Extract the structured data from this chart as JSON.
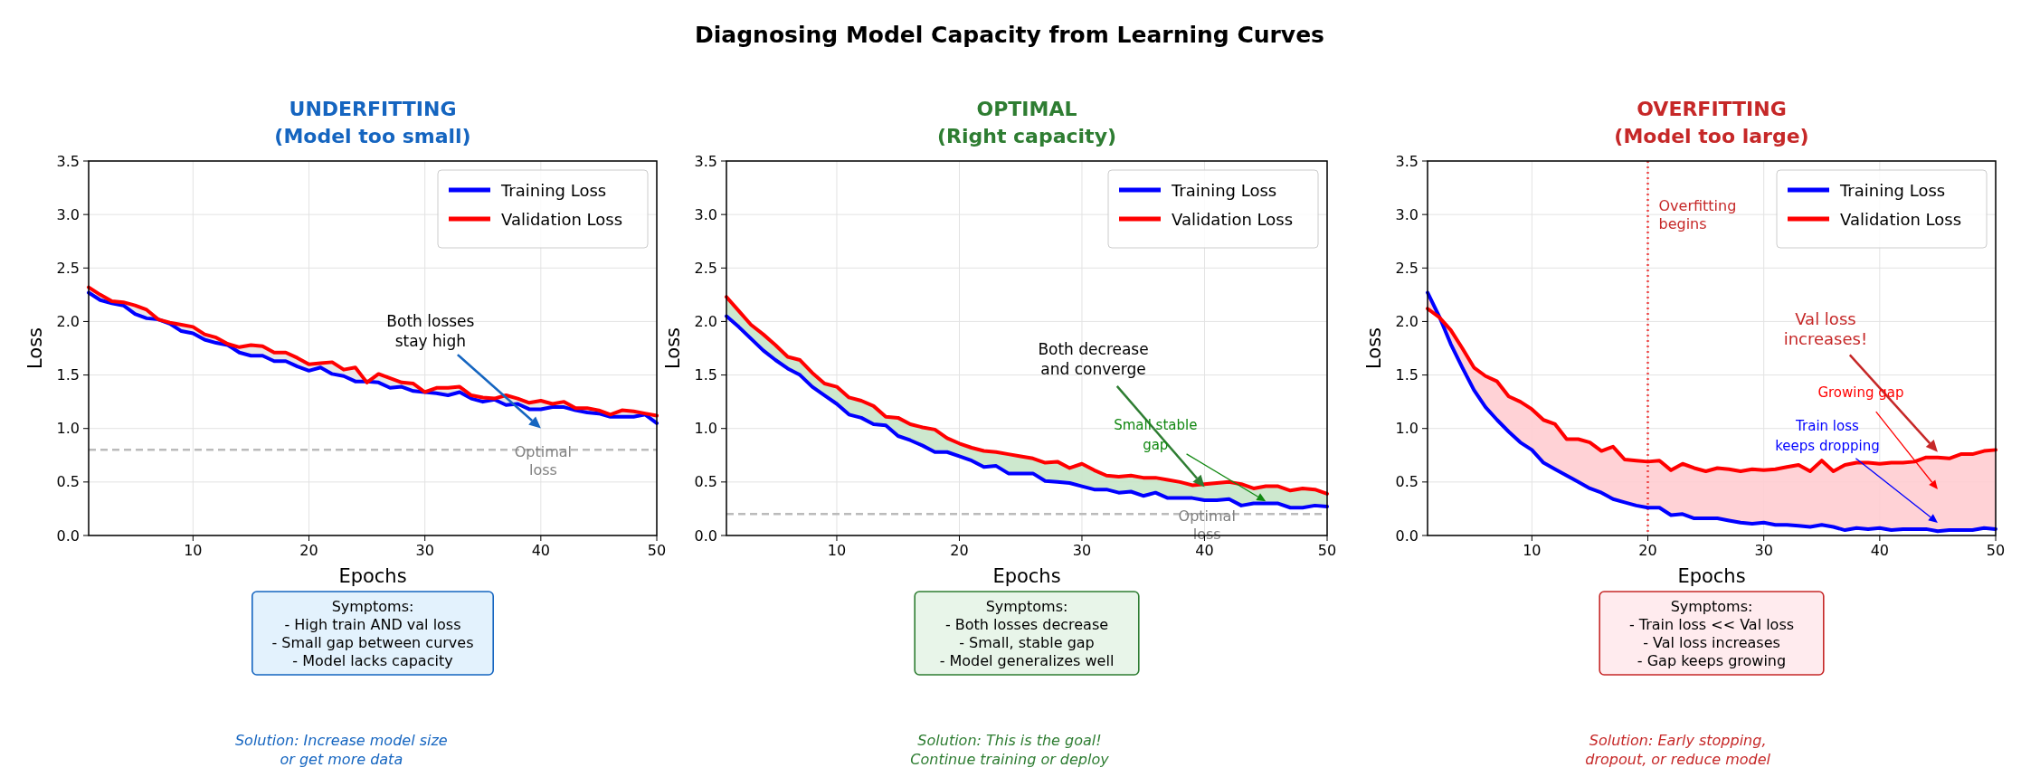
{
  "chart_data": [
    {
      "type": "line",
      "title": "UNDERFITTING\n(Model too small)",
      "xlabel": "Epochs",
      "ylabel": "Loss",
      "xlim": [
        1,
        50
      ],
      "ylim": [
        0,
        3.5
      ],
      "xticks": [
        10,
        20,
        30,
        40,
        50
      ],
      "yticks": [
        {
          "value": 0,
          "label": "0.0"
        },
        0.5,
        {
          "value": 1,
          "label": "1.0"
        },
        1.5,
        {
          "value": 2,
          "label": "2.0"
        },
        2.5,
        {
          "value": 3,
          "label": "3.0"
        },
        3.5
      ],
      "grid": true,
      "legend": "top right",
      "x": [
        1,
        2,
        3,
        4,
        5,
        6,
        7,
        8,
        9,
        10,
        11,
        12,
        13,
        14,
        15,
        16,
        17,
        18,
        19,
        20,
        21,
        22,
        23,
        24,
        25,
        26,
        27,
        28,
        29,
        30,
        31,
        32,
        33,
        34,
        35,
        36,
        37,
        38,
        39,
        40,
        41,
        42,
        43,
        44,
        45,
        46,
        47,
        48,
        49,
        50
      ],
      "series": [
        {
          "name": "Training Loss",
          "color": "#0000ff",
          "values": [
            2.27,
            2.2,
            2.17,
            2.15,
            2.07,
            2.03,
            2.02,
            1.98,
            1.91,
            1.89,
            1.83,
            1.8,
            1.78,
            1.71,
            1.68,
            1.68,
            1.63,
            1.63,
            1.58,
            1.54,
            1.57,
            1.51,
            1.49,
            1.44,
            1.44,
            1.43,
            1.38,
            1.39,
            1.35,
            1.34,
            1.33,
            1.31,
            1.34,
            1.28,
            1.25,
            1.27,
            1.22,
            1.23,
            1.18,
            1.18,
            1.2,
            1.2,
            1.17,
            1.15,
            1.14,
            1.11,
            1.11,
            1.11,
            1.13,
            1.05
          ]
        },
        {
          "name": "Validation Loss",
          "color": "#ff0000",
          "values": [
            2.32,
            2.25,
            2.19,
            2.18,
            2.15,
            2.11,
            2.02,
            1.99,
            1.97,
            1.95,
            1.88,
            1.85,
            1.79,
            1.76,
            1.78,
            1.77,
            1.71,
            1.71,
            1.66,
            1.6,
            1.61,
            1.62,
            1.55,
            1.57,
            1.43,
            1.51,
            1.47,
            1.43,
            1.42,
            1.34,
            1.38,
            1.38,
            1.39,
            1.31,
            1.29,
            1.28,
            1.31,
            1.28,
            1.24,
            1.26,
            1.23,
            1.25,
            1.19,
            1.19,
            1.17,
            1.13,
            1.17,
            1.16,
            1.14,
            1.12
          ],
          "lower": [
            2.27,
            2.2,
            2.17,
            2.15,
            2.07,
            2.03,
            2.02,
            1.98,
            1.91,
            1.89,
            1.83,
            1.8,
            1.78,
            1.71,
            1.68,
            1.68,
            1.63,
            1.63,
            1.58,
            1.54,
            1.57,
            1.51,
            1.49,
            1.44,
            1.44,
            1.43,
            1.38,
            1.39,
            1.35,
            1.34,
            1.33,
            1.31,
            1.34,
            1.28,
            1.25,
            1.27,
            1.22,
            1.23,
            1.18,
            1.18,
            1.2,
            1.2,
            1.17,
            1.15,
            1.14,
            1.11,
            1.11,
            1.11,
            1.13,
            1.05
          ],
          "upper": [
            2.32,
            2.25,
            2.19,
            2.18,
            2.15,
            2.11,
            2.02,
            1.99,
            1.97,
            1.95,
            1.88,
            1.85,
            1.79,
            1.76,
            1.78,
            1.77,
            1.71,
            1.71,
            1.66,
            1.6,
            1.61,
            1.62,
            1.55,
            1.57,
            1.43,
            1.51,
            1.47,
            1.43,
            1.42,
            1.34,
            1.38,
            1.38,
            1.39,
            1.31,
            1.29,
            1.28,
            1.31,
            1.28,
            1.24,
            1.26,
            1.23,
            1.25,
            1.19,
            1.19,
            1.17,
            1.13,
            1.17,
            1.16,
            1.14,
            1.12
          ]
        }
      ],
      "ref_lines": [
        {
          "axis": "y",
          "value": 0.8,
          "label": "Optimal\nloss",
          "color": "#bbbbbb",
          "line_style": "dashed"
        }
      ],
      "annotations": [
        "Diagnosing Model Capacity from Learning Curves",
        "Both losses\nstay high",
        "Symptoms:\n- High train AND val loss\n- Small gap between curves\n- Model lacks capacity",
        "Solution: Increase model size\nor get more data"
      ]
    },
    {
      "type": "line",
      "title": "OPTIMAL\n(Right capacity)",
      "xlabel": "Epochs",
      "ylabel": "Loss",
      "xlim": [
        1,
        50
      ],
      "ylim": [
        0,
        3.5
      ],
      "xticks": [
        10,
        20,
        30,
        40,
        50
      ],
      "yticks": [
        {
          "value": 0,
          "label": "0.0"
        },
        0.5,
        {
          "value": 1,
          "label": "1.0"
        },
        1.5,
        {
          "value": 2,
          "label": "2.0"
        },
        2.5,
        {
          "value": 3,
          "label": "3.0"
        },
        3.5
      ],
      "grid": true,
      "legend": "top right",
      "x": [
        1,
        2,
        3,
        4,
        5,
        6,
        7,
        8,
        9,
        10,
        11,
        12,
        13,
        14,
        15,
        16,
        17,
        18,
        19,
        20,
        21,
        22,
        23,
        24,
        25,
        26,
        27,
        28,
        29,
        30,
        31,
        32,
        33,
        34,
        35,
        36,
        37,
        38,
        39,
        40,
        41,
        42,
        43,
        44,
        45,
        46,
        47,
        48,
        49,
        50
      ],
      "series": [
        {
          "name": "Training Loss",
          "color": "#0000ff",
          "values": [
            2.05,
            1.95,
            1.84,
            1.73,
            1.64,
            1.56,
            1.5,
            1.39,
            1.31,
            1.23,
            1.13,
            1.1,
            1.04,
            1.03,
            0.93,
            0.89,
            0.84,
            0.78,
            0.78,
            0.74,
            0.7,
            0.64,
            0.65,
            0.58,
            0.58,
            0.58,
            0.51,
            0.5,
            0.49,
            0.46,
            0.43,
            0.43,
            0.4,
            0.41,
            0.37,
            0.4,
            0.35,
            0.35,
            0.35,
            0.33,
            0.33,
            0.34,
            0.28,
            0.3,
            0.3,
            0.3,
            0.26,
            0.26,
            0.28,
            0.27
          ]
        },
        {
          "name": "Validation Loss",
          "color": "#ff0000",
          "values": [
            2.23,
            2.1,
            1.97,
            1.88,
            1.78,
            1.67,
            1.64,
            1.52,
            1.42,
            1.39,
            1.29,
            1.26,
            1.21,
            1.11,
            1.1,
            1.04,
            1.01,
            0.99,
            0.91,
            0.86,
            0.82,
            0.79,
            0.78,
            0.76,
            0.74,
            0.72,
            0.68,
            0.69,
            0.63,
            0.67,
            0.61,
            0.56,
            0.55,
            0.56,
            0.54,
            0.54,
            0.52,
            0.5,
            0.47,
            0.48,
            0.49,
            0.5,
            0.48,
            0.44,
            0.46,
            0.46,
            0.42,
            0.44,
            0.43,
            0.39
          ],
          "lower": [
            2.05,
            1.95,
            1.84,
            1.73,
            1.64,
            1.56,
            1.5,
            1.39,
            1.31,
            1.23,
            1.13,
            1.1,
            1.04,
            1.03,
            0.93,
            0.89,
            0.84,
            0.78,
            0.78,
            0.74,
            0.7,
            0.64,
            0.65,
            0.58,
            0.58,
            0.58,
            0.51,
            0.5,
            0.49,
            0.46,
            0.43,
            0.43,
            0.4,
            0.41,
            0.37,
            0.4,
            0.35,
            0.35,
            0.35,
            0.33,
            0.33,
            0.34,
            0.28,
            0.3,
            0.3,
            0.3,
            0.26,
            0.26,
            0.28,
            0.27
          ],
          "upper": [
            2.23,
            2.1,
            1.97,
            1.88,
            1.78,
            1.67,
            1.64,
            1.52,
            1.42,
            1.39,
            1.29,
            1.26,
            1.21,
            1.11,
            1.1,
            1.04,
            1.01,
            0.99,
            0.91,
            0.86,
            0.82,
            0.79,
            0.78,
            0.76,
            0.74,
            0.72,
            0.68,
            0.69,
            0.63,
            0.67,
            0.61,
            0.56,
            0.55,
            0.56,
            0.54,
            0.54,
            0.52,
            0.5,
            0.47,
            0.48,
            0.49,
            0.5,
            0.48,
            0.44,
            0.46,
            0.46,
            0.42,
            0.44,
            0.43,
            0.39
          ]
        }
      ],
      "ref_lines": [
        {
          "axis": "y",
          "value": 0.2,
          "label": "Optimal\nloss",
          "color": "#bbbbbb",
          "line_style": "dashed"
        }
      ],
      "annotations": [
        "Both decrease\nand converge",
        "Small stable\ngap",
        "Symptoms:\n- Both losses decrease\n- Small, stable gap\n- Model generalizes well",
        "Solution: This is the goal!\nContinue training or deploy"
      ]
    },
    {
      "type": "line",
      "title": "OVERFITTING\n(Model too large)",
      "xlabel": "Epochs",
      "ylabel": "Loss",
      "xlim": [
        1,
        50
      ],
      "ylim": [
        0,
        3.5
      ],
      "xticks": [
        10,
        20,
        30,
        40,
        50
      ],
      "yticks": [
        {
          "value": 0,
          "label": "0.0"
        },
        0.5,
        {
          "value": 1,
          "label": "1.0"
        },
        1.5,
        {
          "value": 2,
          "label": "2.0"
        },
        2.5,
        {
          "value": 3,
          "label": "3.0"
        },
        3.5
      ],
      "grid": true,
      "legend": "top right",
      "x": [
        1,
        2,
        3,
        4,
        5,
        6,
        7,
        8,
        9,
        10,
        11,
        12,
        13,
        14,
        15,
        16,
        17,
        18,
        19,
        20,
        21,
        22,
        23,
        24,
        25,
        26,
        27,
        28,
        29,
        30,
        31,
        32,
        33,
        34,
        35,
        36,
        37,
        38,
        39,
        40,
        41,
        42,
        43,
        44,
        45,
        46,
        47,
        48,
        49,
        50
      ],
      "series": [
        {
          "name": "Training Loss",
          "color": "#0000ff",
          "values": [
            2.27,
            2.05,
            1.79,
            1.57,
            1.36,
            1.2,
            1.08,
            0.97,
            0.87,
            0.8,
            0.68,
            0.62,
            0.56,
            0.5,
            0.44,
            0.4,
            0.34,
            0.31,
            0.28,
            0.26,
            0.26,
            0.19,
            0.2,
            0.16,
            0.16,
            0.16,
            0.14,
            0.12,
            0.11,
            0.12,
            0.1,
            0.1,
            0.09,
            0.08,
            0.1,
            0.08,
            0.05,
            0.07,
            0.06,
            0.07,
            0.05,
            0.06,
            0.06,
            0.06,
            0.04,
            0.05,
            0.05,
            0.05,
            0.07,
            0.06
          ]
        },
        {
          "name": "Validation Loss",
          "color": "#ff0000",
          "values": [
            2.12,
            2.04,
            1.92,
            1.75,
            1.57,
            1.49,
            1.44,
            1.3,
            1.25,
            1.18,
            1.08,
            1.04,
            0.9,
            0.9,
            0.87,
            0.79,
            0.83,
            0.71,
            0.7,
            0.69,
            0.7,
            0.61,
            0.67,
            0.63,
            0.6,
            0.63,
            0.62,
            0.6,
            0.62,
            0.61,
            0.62,
            0.64,
            0.66,
            0.6,
            0.7,
            0.6,
            0.66,
            0.68,
            0.68,
            0.67,
            0.68,
            0.68,
            0.69,
            0.73,
            0.73,
            0.72,
            0.76,
            0.76,
            0.79,
            0.8
          ],
          "lower": [
            2.27,
            2.05,
            1.79,
            1.57,
            1.36,
            1.2,
            1.08,
            0.97,
            0.87,
            0.8,
            0.68,
            0.62,
            0.56,
            0.5,
            0.44,
            0.4,
            0.34,
            0.31,
            0.28,
            0.26,
            0.26,
            0.19,
            0.2,
            0.16,
            0.16,
            0.16,
            0.14,
            0.12,
            0.11,
            0.12,
            0.1,
            0.1,
            0.09,
            0.08,
            0.1,
            0.08,
            0.05,
            0.07,
            0.06,
            0.07,
            0.05,
            0.06,
            0.06,
            0.06,
            0.04,
            0.05,
            0.05,
            0.05,
            0.07,
            0.06
          ],
          "upper": [
            2.12,
            2.04,
            1.92,
            1.75,
            1.57,
            1.49,
            1.44,
            1.3,
            1.25,
            1.18,
            1.08,
            1.04,
            0.9,
            0.9,
            0.87,
            0.79,
            0.83,
            0.71,
            0.7,
            0.69,
            0.7,
            0.61,
            0.67,
            0.63,
            0.6,
            0.63,
            0.62,
            0.6,
            0.62,
            0.61,
            0.62,
            0.64,
            0.66,
            0.6,
            0.7,
            0.6,
            0.66,
            0.68,
            0.68,
            0.67,
            0.68,
            0.68,
            0.69,
            0.73,
            0.73,
            0.72,
            0.76,
            0.76,
            0.79,
            0.8
          ]
        }
      ],
      "ref_lines": [
        {
          "axis": "x",
          "value": 20,
          "label": "Overfitting\nbegins",
          "color": "#ee4444",
          "line_style": "dotted"
        }
      ],
      "annotations": [
        "Val loss\nincreases!",
        "Growing gap",
        "Train loss\nkeeps dropping",
        "Symptoms:\n- Train loss << Val loss\n- Val loss increases\n- Gap keeps growing",
        "Solution: Early stopping,\ndropout, or reduce model"
      ]
    }
  ]
}
